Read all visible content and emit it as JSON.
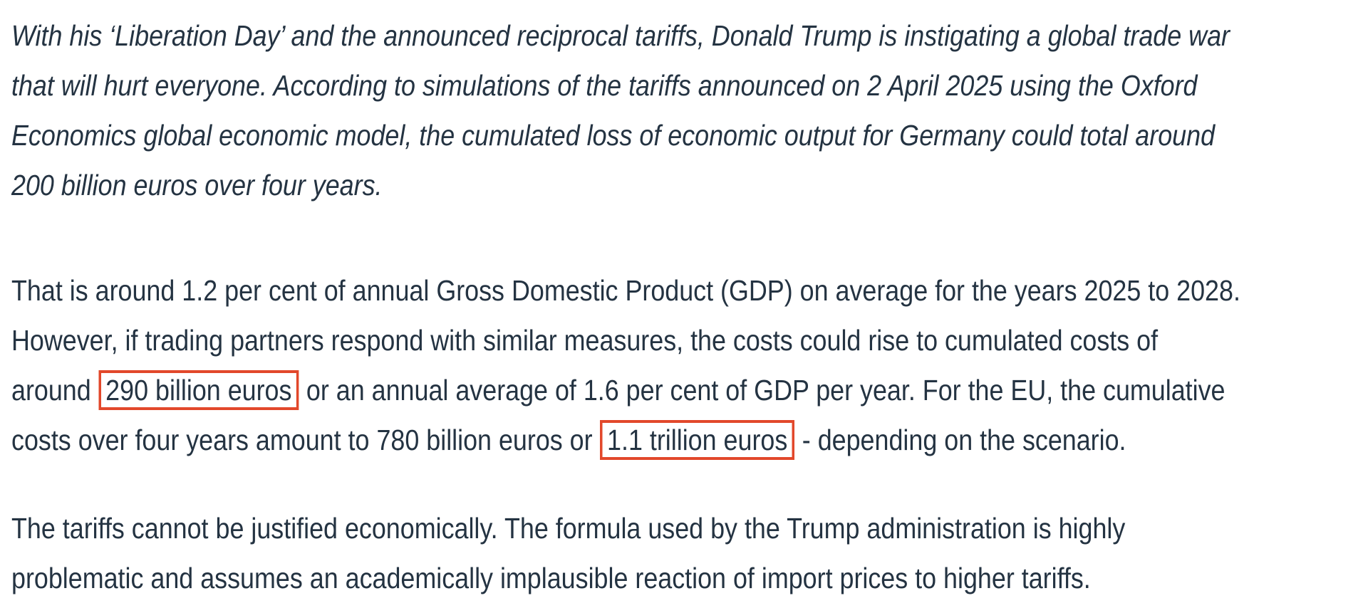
{
  "page": {
    "background_color": "#ffffff",
    "text_color": "#243342",
    "highlight_border_color": "#e2482b"
  },
  "article": {
    "highlighted_phrases": [
      "290 billion euros",
      "1.1 trillion euros"
    ],
    "paragraphs": [
      {
        "name": "lead-paragraph",
        "style": "italic",
        "lines": [
          [
            {
              "text": "With his ‘Liberation Day’ and the announced reciprocal tariffs, Donald Trump is instigating a global trade war"
            }
          ],
          [
            {
              "text": "that will hurt everyone. According to simulations of the tariffs announced on 2 April 2025 using the Oxford"
            }
          ],
          [
            {
              "text": "Economics global economic model, the cumulated loss of economic output for Germany could total around"
            }
          ],
          [
            {
              "text": "200 billion euros over four years."
            }
          ]
        ]
      },
      {
        "name": "body-paragraph-1",
        "style": "regular",
        "lines": [
          [
            {
              "text": "That is around 1.2 per cent of annual Gross Domestic Product (GDP) on average for the years 2025 to 2028."
            }
          ],
          [
            {
              "text": "However, if trading partners respond with similar measures, the costs could rise to cumulated costs of"
            }
          ],
          [
            {
              "text": "around "
            },
            {
              "text": "290 billion euros",
              "highlighted": true
            },
            {
              "text": " or an annual average of 1.6 per cent of GDP per year. For the EU, the cumulative"
            }
          ],
          [
            {
              "text": "costs over four years amount to 780 billion euros or "
            },
            {
              "text": "1.1 trillion euros",
              "highlighted": true
            },
            {
              "text": " - depending on the scenario."
            }
          ]
        ]
      },
      {
        "name": "body-paragraph-2",
        "style": "regular",
        "lines": [
          [
            {
              "text": "The tariffs cannot be justified economically. The formula used by the Trump administration is highly"
            }
          ],
          [
            {
              "text": "problematic and assumes an academically implausible reaction of import prices to higher tariffs."
            }
          ]
        ]
      }
    ]
  }
}
